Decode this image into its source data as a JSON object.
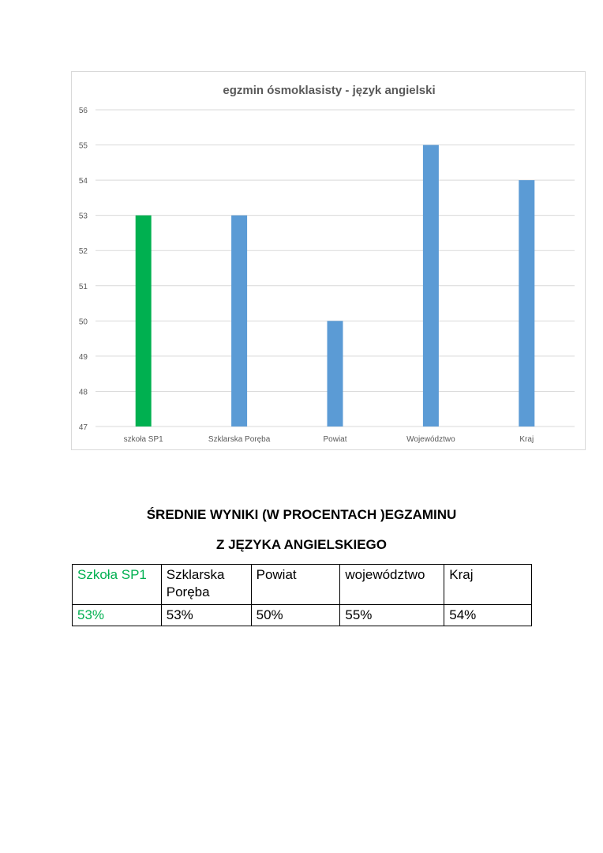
{
  "chart_data": {
    "type": "bar",
    "title": "egzmin ósmoklasisty - język angielski",
    "categories": [
      "szkoła SP1",
      "Szklarska Poręba",
      "Powiat",
      "Województwo",
      "Kraj"
    ],
    "values": [
      53,
      53,
      50,
      55,
      54
    ],
    "bar_colors": [
      "#00b050",
      "#5b9bd5",
      "#5b9bd5",
      "#5b9bd5",
      "#5b9bd5"
    ],
    "ylim": [
      47,
      56
    ],
    "yticks": [
      47,
      48,
      49,
      50,
      51,
      52,
      53,
      54,
      55,
      56
    ],
    "grid": true,
    "legend": "none",
    "xlabel": "",
    "ylabel": ""
  },
  "heading": {
    "line1": "ŚREDNIE WYNIKI  (W PROCENTACH )EGZAMINU",
    "line2": "Z  JĘZYKA ANGIELSKIEGO"
  },
  "table": {
    "headers": [
      "Szkoła SP1",
      "Szklarska Poręba",
      "Powiat",
      "województwo",
      "Kraj"
    ],
    "values": [
      "53%",
      "53%",
      "50%",
      "55%",
      "54%"
    ],
    "highlight_color": "#00b050"
  }
}
